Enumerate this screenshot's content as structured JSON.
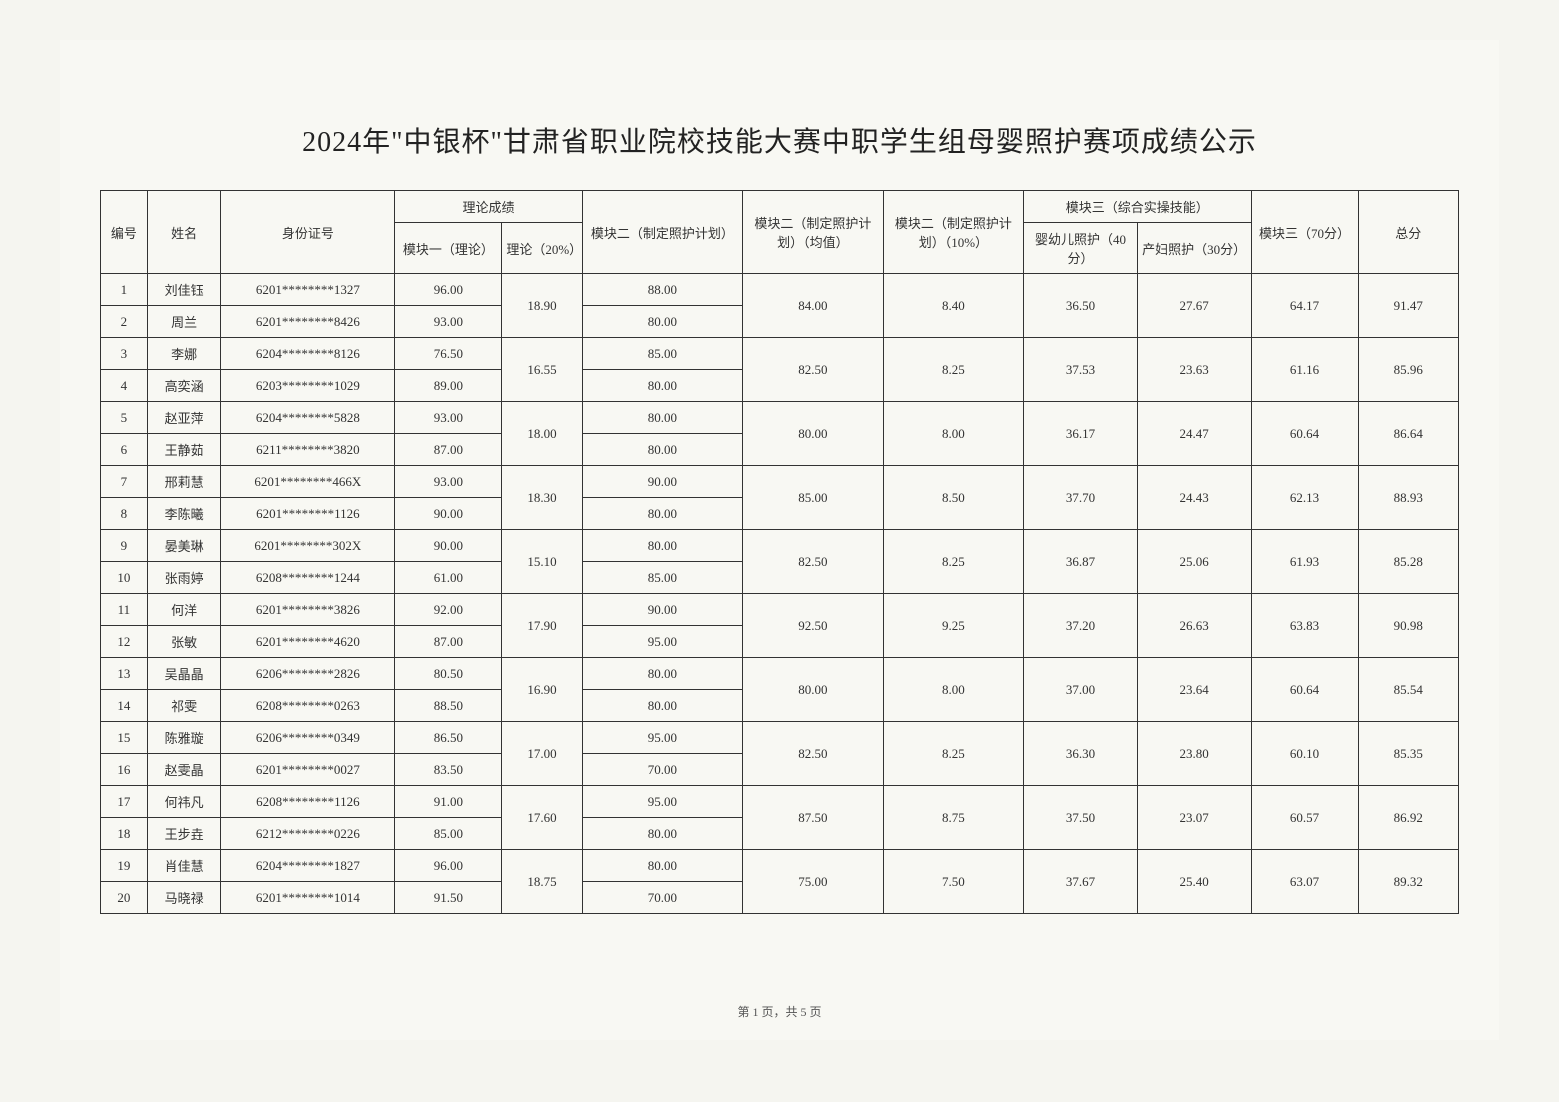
{
  "title": "2024年\"中银杯\"甘肃省职业院校技能大赛中职学生组母婴照护赛项成绩公示",
  "pager": "第 1 页，共 5 页",
  "headers": {
    "num": "编号",
    "name": "姓名",
    "id": "身份证号",
    "theory_group": "理论成绩",
    "mod1": "模块一（理论）",
    "theory_pct": "理论（20%）",
    "mod2a": "模块二（制定照护计划）",
    "mod2b": "模块二（制定照护计划）（均值）",
    "mod2c": "模块二（制定照护计划）（10%）",
    "mod3_group": "模块三（综合实操技能）",
    "mod3a": "婴幼儿照护（40分）",
    "mod3b": "产妇照护（30分）",
    "mod3": "模块三（70分）",
    "total": "总分"
  },
  "pairs": [
    {
      "a": {
        "num": "1",
        "name": "刘佳钰",
        "id": "6201********1327",
        "mod1": "96.00",
        "mod2a": "88.00"
      },
      "b": {
        "num": "2",
        "name": "周兰",
        "id": "6201********8426",
        "mod1": "93.00",
        "mod2a": "80.00"
      },
      "theory": "18.90",
      "mod2b": "84.00",
      "mod2c": "8.40",
      "mod3a": "36.50",
      "mod3b": "27.67",
      "mod3": "64.17",
      "total": "91.47"
    },
    {
      "a": {
        "num": "3",
        "name": "李娜",
        "id": "6204********8126",
        "mod1": "76.50",
        "mod2a": "85.00"
      },
      "b": {
        "num": "4",
        "name": "高奕涵",
        "id": "6203********1029",
        "mod1": "89.00",
        "mod2a": "80.00"
      },
      "theory": "16.55",
      "mod2b": "82.50",
      "mod2c": "8.25",
      "mod3a": "37.53",
      "mod3b": "23.63",
      "mod3": "61.16",
      "total": "85.96"
    },
    {
      "a": {
        "num": "5",
        "name": "赵亚萍",
        "id": "6204********5828",
        "mod1": "93.00",
        "mod2a": "80.00"
      },
      "b": {
        "num": "6",
        "name": "王静茹",
        "id": "6211********3820",
        "mod1": "87.00",
        "mod2a": "80.00"
      },
      "theory": "18.00",
      "mod2b": "80.00",
      "mod2c": "8.00",
      "mod3a": "36.17",
      "mod3b": "24.47",
      "mod3": "60.64",
      "total": "86.64"
    },
    {
      "a": {
        "num": "7",
        "name": "邢莉慧",
        "id": "6201********466X",
        "mod1": "93.00",
        "mod2a": "90.00"
      },
      "b": {
        "num": "8",
        "name": "李陈曦",
        "id": "6201********1126",
        "mod1": "90.00",
        "mod2a": "80.00"
      },
      "theory": "18.30",
      "mod2b": "85.00",
      "mod2c": "8.50",
      "mod3a": "37.70",
      "mod3b": "24.43",
      "mod3": "62.13",
      "total": "88.93"
    },
    {
      "a": {
        "num": "9",
        "name": "晏美琳",
        "id": "6201********302X",
        "mod1": "90.00",
        "mod2a": "80.00"
      },
      "b": {
        "num": "10",
        "name": "张雨婷",
        "id": "6208********1244",
        "mod1": "61.00",
        "mod2a": "85.00"
      },
      "theory": "15.10",
      "mod2b": "82.50",
      "mod2c": "8.25",
      "mod3a": "36.87",
      "mod3b": "25.06",
      "mod3": "61.93",
      "total": "85.28"
    },
    {
      "a": {
        "num": "11",
        "name": "何洋",
        "id": "6201********3826",
        "mod1": "92.00",
        "mod2a": "90.00"
      },
      "b": {
        "num": "12",
        "name": "张敏",
        "id": "6201********4620",
        "mod1": "87.00",
        "mod2a": "95.00"
      },
      "theory": "17.90",
      "mod2b": "92.50",
      "mod2c": "9.25",
      "mod3a": "37.20",
      "mod3b": "26.63",
      "mod3": "63.83",
      "total": "90.98"
    },
    {
      "a": {
        "num": "13",
        "name": "吴晶晶",
        "id": "6206********2826",
        "mod1": "80.50",
        "mod2a": "80.00"
      },
      "b": {
        "num": "14",
        "name": "祁雯",
        "id": "6208********0263",
        "mod1": "88.50",
        "mod2a": "80.00"
      },
      "theory": "16.90",
      "mod2b": "80.00",
      "mod2c": "8.00",
      "mod3a": "37.00",
      "mod3b": "23.64",
      "mod3": "60.64",
      "total": "85.54"
    },
    {
      "a": {
        "num": "15",
        "name": "陈雅璇",
        "id": "6206********0349",
        "mod1": "86.50",
        "mod2a": "95.00"
      },
      "b": {
        "num": "16",
        "name": "赵雯晶",
        "id": "6201********0027",
        "mod1": "83.50",
        "mod2a": "70.00"
      },
      "theory": "17.00",
      "mod2b": "82.50",
      "mod2c": "8.25",
      "mod3a": "36.30",
      "mod3b": "23.80",
      "mod3": "60.10",
      "total": "85.35"
    },
    {
      "a": {
        "num": "17",
        "name": "何祎凡",
        "id": "6208********1126",
        "mod1": "91.00",
        "mod2a": "95.00"
      },
      "b": {
        "num": "18",
        "name": "王步垚",
        "id": "6212********0226",
        "mod1": "85.00",
        "mod2a": "80.00"
      },
      "theory": "17.60",
      "mod2b": "87.50",
      "mod2c": "8.75",
      "mod3a": "37.50",
      "mod3b": "23.07",
      "mod3": "60.57",
      "total": "86.92"
    },
    {
      "a": {
        "num": "19",
        "name": "肖佳慧",
        "id": "6204********1827",
        "mod1": "96.00",
        "mod2a": "80.00"
      },
      "b": {
        "num": "20",
        "name": "马晓禄",
        "id": "6201********1014",
        "mod1": "91.50",
        "mod2a": "70.00"
      },
      "theory": "18.75",
      "mod2b": "75.00",
      "mod2c": "7.50",
      "mod3a": "37.67",
      "mod3b": "25.40",
      "mod3": "63.07",
      "total": "89.32"
    }
  ],
  "styling": {
    "background_color": "#f8f8f3",
    "border_color": "#333333",
    "text_color": "#333333",
    "title_fontsize": 28,
    "cell_fontsize": 13,
    "font_family": "SimSun"
  }
}
